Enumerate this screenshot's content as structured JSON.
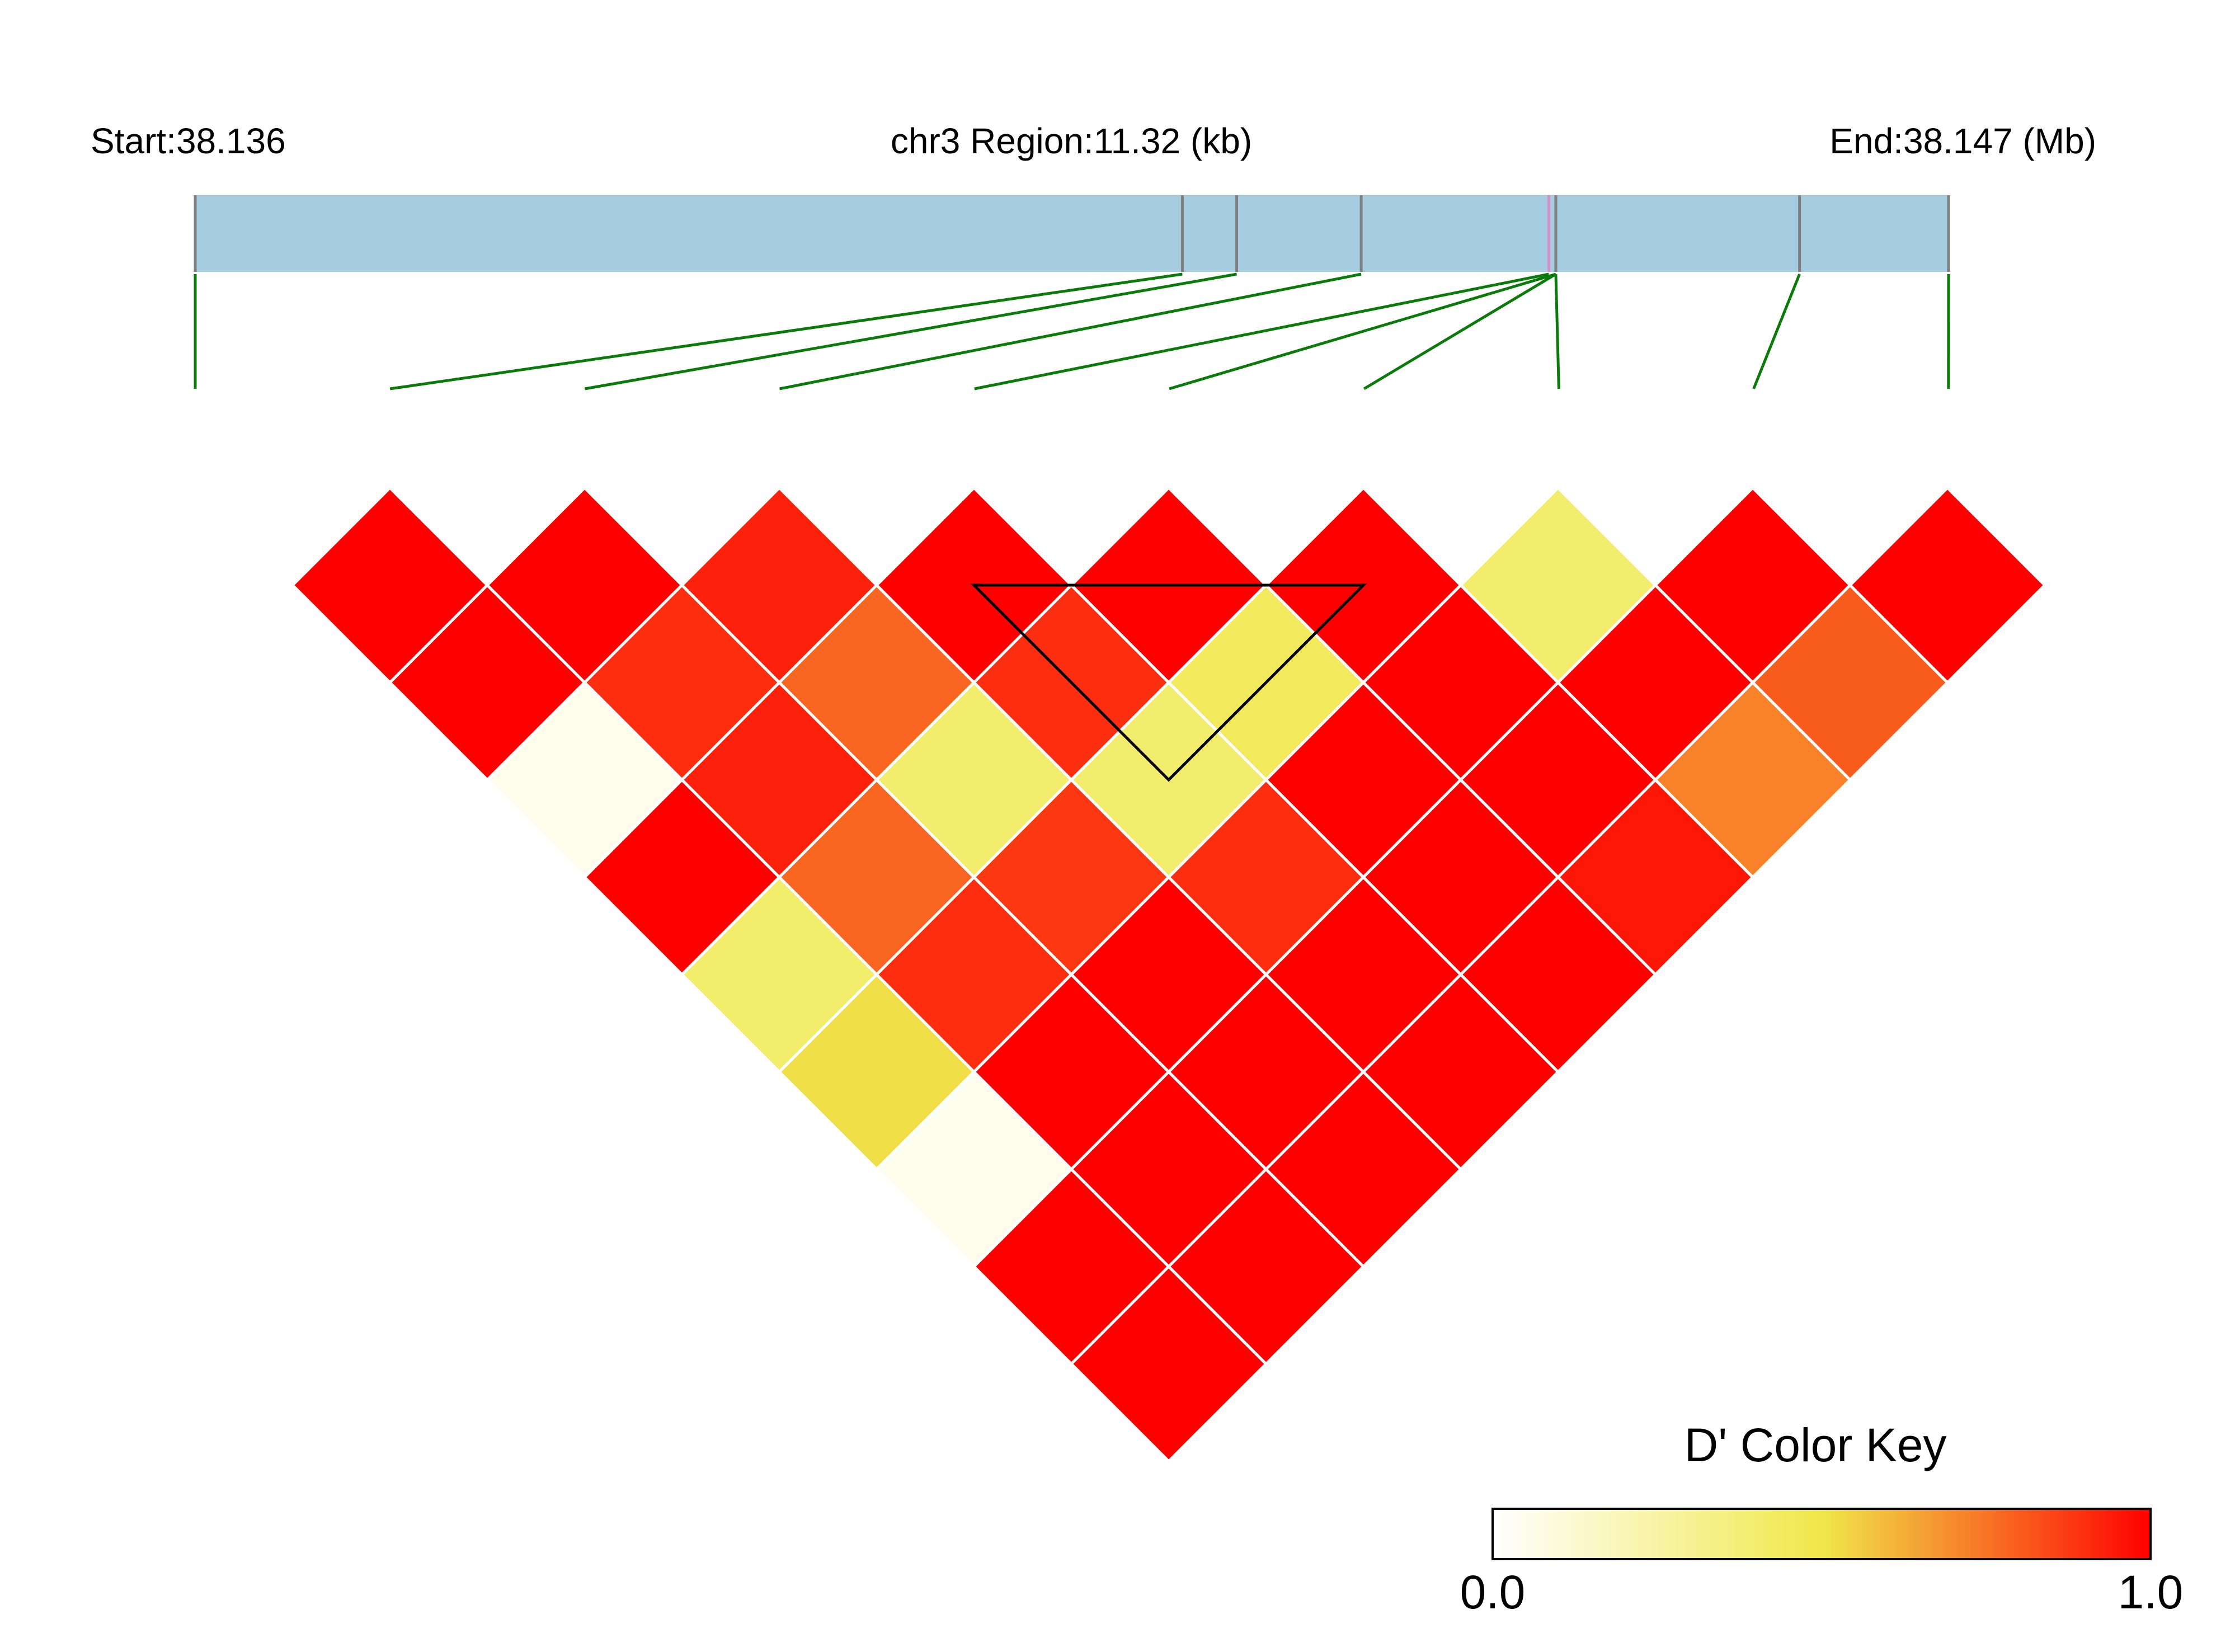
{
  "chart_data": {
    "type": "heatmap",
    "subtype": "linkage-disequilibrium-triangle",
    "header": {
      "start_label": "Start:38.136",
      "region_label": "chr3 Region:11.32 (kb)",
      "end_label": "End:38.147 (Mb)"
    },
    "region": {
      "chromosome": "chr3",
      "start_mb": 38.136,
      "end_mb": 38.147,
      "length_kb": 11.32
    },
    "snp_count": 10,
    "snp_relative_positions": [
      0.0,
      0.563,
      0.594,
      0.665,
      0.772,
      0.776,
      0.776,
      0.776,
      0.915,
      1.0
    ],
    "highlighted_snp_indices": [
      4
    ],
    "ld_matrix_dprime": [
      [
        null,
        1.0,
        1.0,
        0.05,
        1.0,
        0.4,
        0.52,
        0.05,
        1.0,
        1.0
      ],
      [
        1.0,
        null,
        1.0,
        0.9,
        0.93,
        0.78,
        0.9,
        1.0,
        1.0,
        1.0
      ],
      [
        1.0,
        1.0,
        null,
        0.93,
        0.78,
        0.4,
        0.88,
        1.0,
        1.0,
        1.0
      ],
      [
        0.05,
        0.9,
        0.93,
        null,
        1.0,
        0.9,
        0.4,
        0.9,
        1.0,
        1.0
      ],
      [
        1.0,
        0.93,
        0.78,
        1.0,
        null,
        1.0,
        0.45,
        1.0,
        1.0,
        1.0
      ],
      [
        0.4,
        0.78,
        0.4,
        0.9,
        1.0,
        null,
        1.0,
        1.0,
        1.0,
        0.95
      ],
      [
        0.52,
        0.9,
        0.88,
        0.4,
        0.45,
        1.0,
        null,
        0.4,
        1.0,
        0.72
      ],
      [
        0.05,
        1.0,
        1.0,
        0.9,
        1.0,
        1.0,
        0.4,
        null,
        1.0,
        0.8
      ],
      [
        1.0,
        1.0,
        1.0,
        1.0,
        1.0,
        1.0,
        1.0,
        1.0,
        null,
        1.0
      ],
      [
        1.0,
        1.0,
        1.0,
        1.0,
        1.0,
        0.95,
        0.72,
        0.8,
        1.0,
        null
      ]
    ],
    "ld_blocks": [
      {
        "snp_indices": [
          4,
          5,
          6
        ]
      }
    ],
    "color_key": {
      "title": "D' Color Key",
      "min_label": "0.0",
      "max_label": "1.0",
      "min": 0.0,
      "max": 1.0,
      "gradient": [
        "#ffffff",
        "#f0e84a",
        "#ff0000"
      ]
    },
    "colors": {
      "gene_bar": "#a6cce0",
      "snp_marker": "#808080",
      "highlight_marker": "#d58fc8",
      "connector": "#0a7a0a",
      "cell_border": "#ffffff",
      "block_outline": "#000000"
    }
  }
}
